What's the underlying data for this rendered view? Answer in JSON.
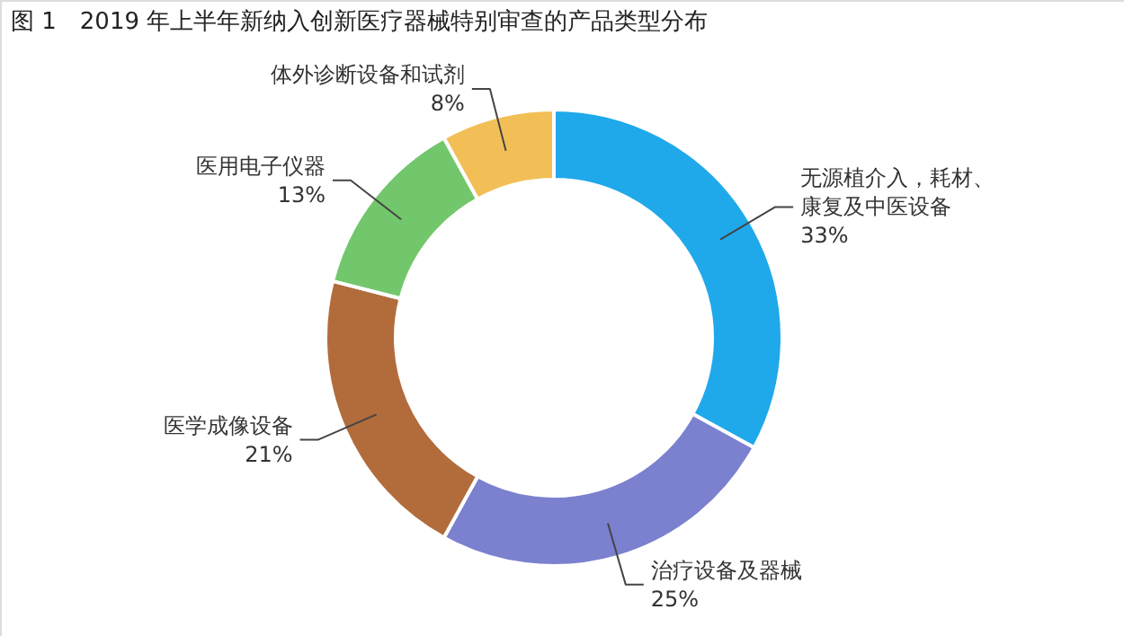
{
  "chart_data": {
    "type": "donut",
    "title": "图 1　2019 年上半年新纳入创新医疗器械特别审查的产品类型分布",
    "categories": [
      "无源植介入，耗材、康复及中医设备",
      "治疗设备及器械",
      "医学成像设备",
      "医用电子仪器",
      "体外诊断设备和试剂"
    ],
    "values": [
      33,
      25,
      21,
      13,
      8
    ],
    "value_labels": [
      "33%",
      "25%",
      "21%",
      "13%",
      "8%"
    ],
    "colors": [
      "#1fa9ea",
      "#7b80cf",
      "#b26c3c",
      "#72c66c",
      "#f2bf57"
    ]
  }
}
